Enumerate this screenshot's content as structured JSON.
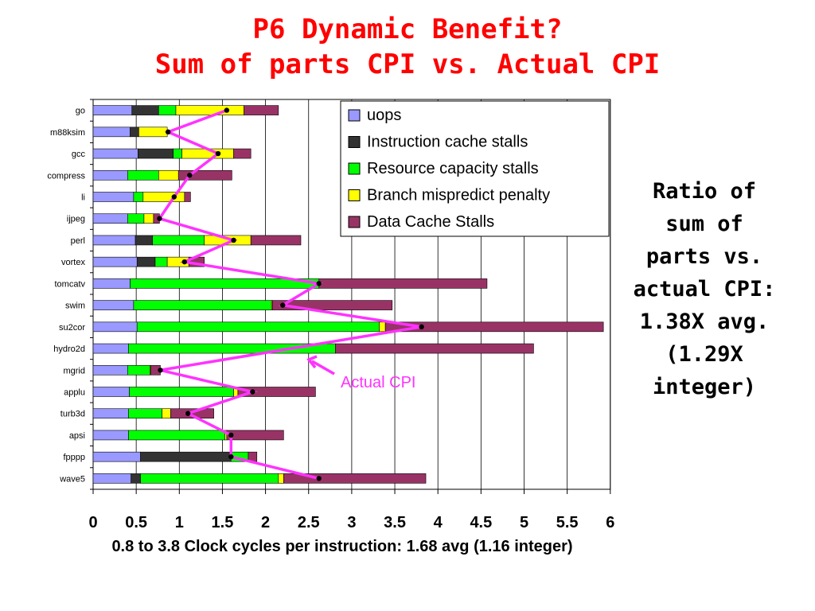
{
  "header": {
    "line1": "P6 Dynamic Benefit?",
    "line2": "Sum of parts CPI vs. Actual CPI"
  },
  "side_note": [
    "Ratio  of",
    "sum of",
    "parts vs.",
    "actual CPI:",
    "1.38X avg.",
    "(1.29X",
    "integer)"
  ],
  "caption": "0.8 to 3.8 Clock cycles per instruction: 1.68 avg (1.16 integer)",
  "annotation": "Actual CPI",
  "colors": {
    "title": "#ff0000",
    "actual_line": "#ff33ff",
    "uops": "#9999ff",
    "icache": "#333333",
    "resource": "#00ff00",
    "branch": "#ffff00",
    "dcache": "#993366"
  },
  "chart_data": {
    "type": "bar",
    "orientation": "horizontal",
    "stacked": true,
    "categories": [
      "go",
      "m88ksim",
      "gcc",
      "compress",
      "li",
      "ijpeg",
      "perl",
      "vortex",
      "tomcatv",
      "swim",
      "su2cor",
      "hydro2d",
      "mgrid",
      "applu",
      "turb3d",
      "apsi",
      "fpppp",
      "wave5"
    ],
    "series": [
      {
        "name": "uops",
        "values": [
          0.45,
          0.43,
          0.52,
          0.4,
          0.47,
          0.4,
          0.49,
          0.51,
          0.43,
          0.47,
          0.51,
          0.41,
          0.4,
          0.42,
          0.41,
          0.41,
          0.55,
          0.44
        ]
      },
      {
        "name": "Instruction cache stalls",
        "values": [
          0.31,
          0.1,
          0.41,
          0,
          0,
          0,
          0.2,
          0.21,
          0,
          0,
          0,
          0,
          0,
          0,
          0,
          0,
          1.05,
          0.11
        ]
      },
      {
        "name": "Resource capacity stalls",
        "values": [
          0.2,
          0,
          0.1,
          0.36,
          0.11,
          0.19,
          0.6,
          0.14,
          2.19,
          1.6,
          2.81,
          2.4,
          0.26,
          1.21,
          0.39,
          1.12,
          0.2,
          1.6
        ]
      },
      {
        "name": "Branch mispredict penalty",
        "values": [
          0.79,
          0.33,
          0.6,
          0.23,
          0.48,
          0.11,
          0.54,
          0.25,
          0,
          0.01,
          0.07,
          0,
          0.01,
          0.05,
          0.1,
          0.02,
          0,
          0.06
        ]
      },
      {
        "name": "Data Cache Stalls",
        "values": [
          0.4,
          0,
          0.2,
          0.62,
          0.07,
          0.07,
          0.58,
          0.18,
          1.95,
          1.39,
          2.53,
          2.3,
          0.11,
          0.9,
          0.5,
          0.66,
          0.1,
          1.65
        ]
      }
    ],
    "actual_cpi": [
      1.55,
      0.87,
      1.45,
      1.12,
      0.94,
      0.77,
      1.63,
      1.06,
      2.62,
      2.2,
      3.81,
      null,
      0.78,
      1.85,
      1.1,
      1.6,
      1.6,
      2.62
    ],
    "xlim": [
      0,
      6
    ],
    "xticks": [
      "0",
      "0.5",
      "1",
      "1.5",
      "2",
      "2.5",
      "3",
      "3.5",
      "4",
      "4.5",
      "5",
      "5.5",
      "6"
    ],
    "legend_position": "top-right"
  }
}
